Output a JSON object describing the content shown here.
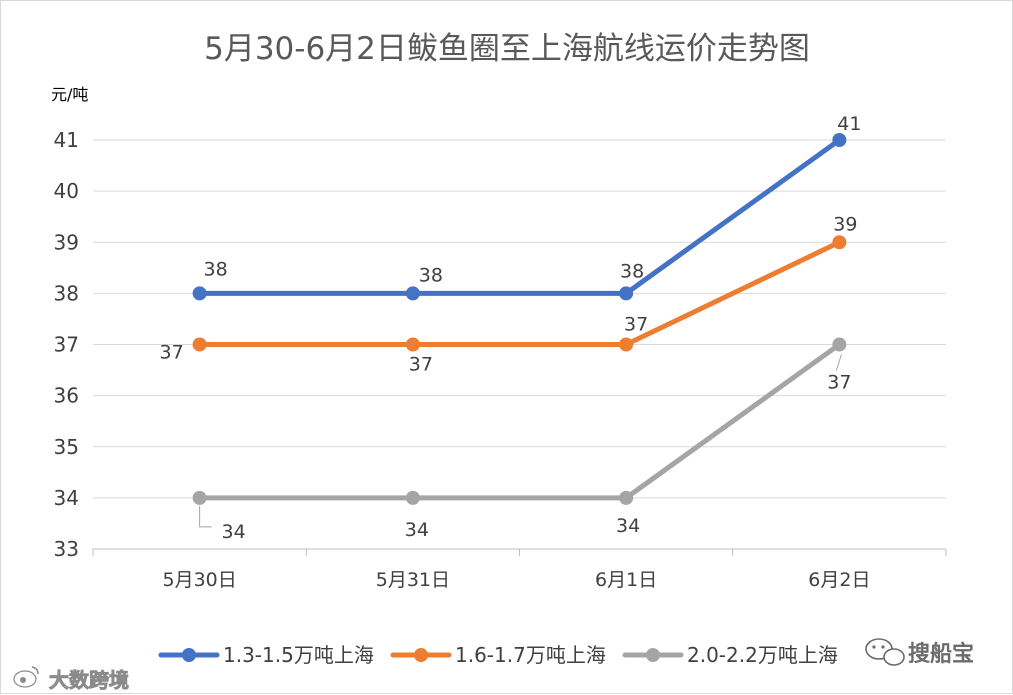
{
  "chart_data": {
    "type": "line",
    "title": "5月30-6月2日鲅鱼圈至上海航线运价走势图",
    "ylabel": "元/吨",
    "xlabel": "",
    "categories": [
      "5月30日",
      "5月31日",
      "6月1日",
      "6月2日"
    ],
    "ylim": [
      33,
      41
    ],
    "yticks": [
      33,
      34,
      35,
      36,
      37,
      38,
      39,
      40,
      41
    ],
    "grid": "horizontal",
    "legend_position": "bottom",
    "series": [
      {
        "name": "1.3-1.5万吨上海",
        "color": "#4472c4",
        "values": [
          38,
          38,
          38,
          41
        ]
      },
      {
        "name": "1.6-1.7万吨上海",
        "color": "#ed7d31",
        "values": [
          37,
          37,
          37,
          39
        ]
      },
      {
        "name": "2.0-2.2万吨上海",
        "color": "#a5a5a5",
        "values": [
          34,
          34,
          34,
          37
        ]
      }
    ]
  },
  "watermarks": {
    "left": "大数跨境",
    "right": "搜船宝"
  }
}
